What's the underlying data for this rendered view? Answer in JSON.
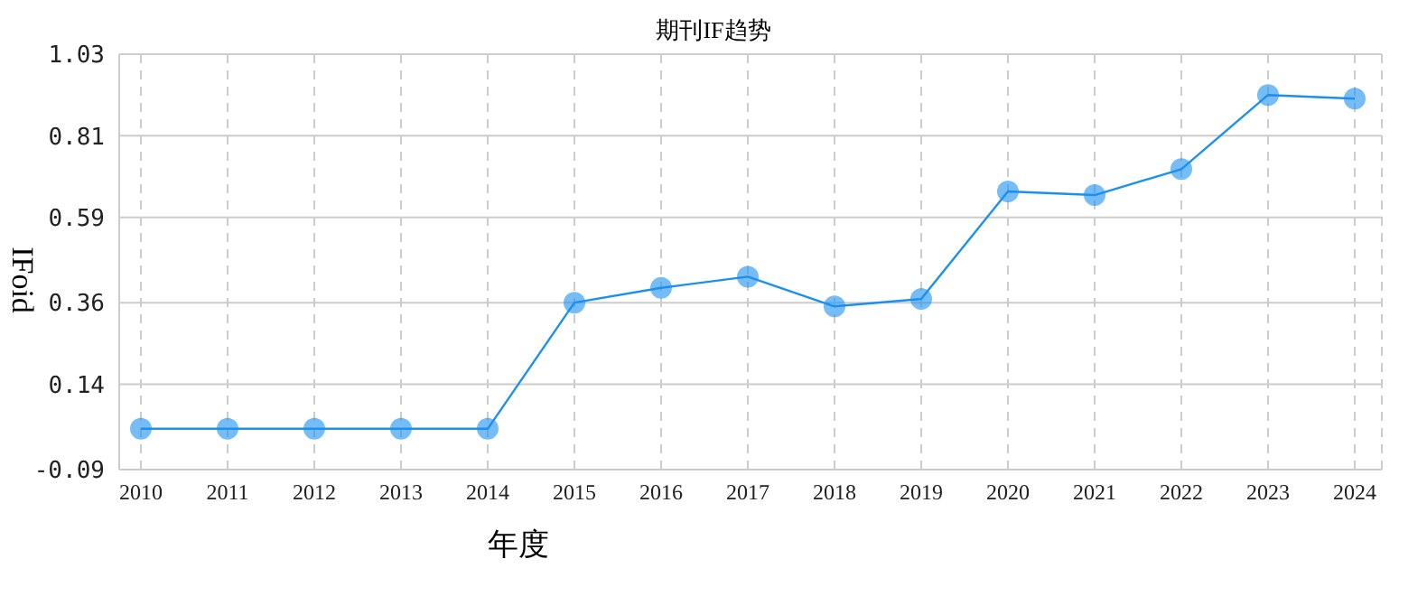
{
  "chart_data": {
    "type": "line",
    "title": "期刊IF趋势",
    "xlabel": "年度",
    "ylabel": "IFoid",
    "categories": [
      "2010",
      "2011",
      "2012",
      "2013",
      "2014",
      "2015",
      "2016",
      "2017",
      "2018",
      "2019",
      "2020",
      "2021",
      "2022",
      "2023",
      "2024"
    ],
    "series": [
      {
        "color": "#1a90f0",
        "values": [
          0.02,
          0.02,
          0.02,
          0.02,
          0.02,
          0.36,
          0.4,
          0.43,
          0.35,
          0.37,
          0.66,
          0.65,
          0.72,
          0.92,
          0.91
        ]
      }
    ],
    "ylim": [
      -0.09,
      1.03
    ],
    "yticks": [
      -0.09,
      0.14,
      0.36,
      0.59,
      0.81,
      1.03
    ],
    "grid": true,
    "marker": "circle",
    "line_style": "solid"
  }
}
